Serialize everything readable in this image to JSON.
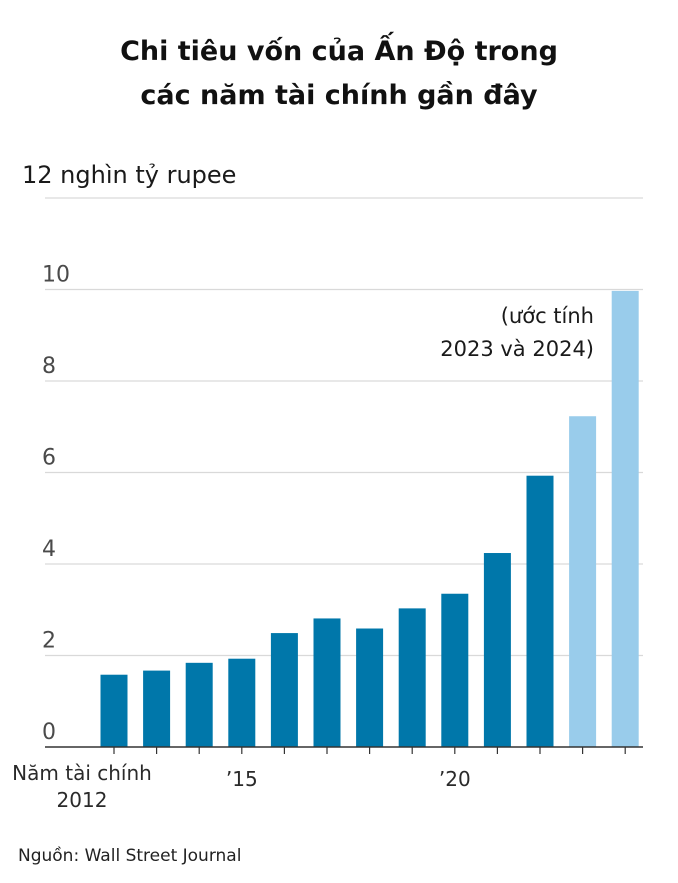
{
  "title": {
    "line1": "Chi tiêu vốn của Ấn Độ trong",
    "line2": "các năm tài chính gần đây"
  },
  "source": "Nguồn: Wall Street Journal",
  "colors": {
    "actual": "#0077aa",
    "estimate": "#99cceb",
    "grid": "#d9d9d9",
    "axis": "#333333"
  },
  "chart_data": {
    "type": "bar",
    "unit_label": "12 nghìn tỷ rupee",
    "y_tick_labels": [
      "0",
      "2",
      "4",
      "6",
      "8",
      "10"
    ],
    "y_ticks": [
      0,
      2,
      4,
      6,
      8,
      10
    ],
    "ylim": [
      0,
      12
    ],
    "grid": true,
    "x_tick_labels": [
      {
        "year": 2015,
        "label": "’15"
      },
      {
        "year": 2020,
        "label": "’20"
      }
    ],
    "x_first_label_line1": "Năm tài chính",
    "x_first_label_line2": "2012",
    "annotation_line1": "(ước tính",
    "annotation_line2": "2023 và 2024)",
    "bars": [
      {
        "year": 2012,
        "value": 1.58,
        "estimate": false
      },
      {
        "year": 2013,
        "value": 1.67,
        "estimate": false
      },
      {
        "year": 2014,
        "value": 1.84,
        "estimate": false
      },
      {
        "year": 2015,
        "value": 1.93,
        "estimate": false
      },
      {
        "year": 2016,
        "value": 2.49,
        "estimate": false
      },
      {
        "year": 2017,
        "value": 2.81,
        "estimate": false
      },
      {
        "year": 2018,
        "value": 2.59,
        "estimate": false
      },
      {
        "year": 2019,
        "value": 3.03,
        "estimate": false
      },
      {
        "year": 2020,
        "value": 3.35,
        "estimate": false
      },
      {
        "year": 2021,
        "value": 4.24,
        "estimate": false
      },
      {
        "year": 2022,
        "value": 5.93,
        "estimate": false
      },
      {
        "year": 2023,
        "value": 7.23,
        "estimate": true
      },
      {
        "year": 2024,
        "value": 9.97,
        "estimate": true
      }
    ]
  }
}
